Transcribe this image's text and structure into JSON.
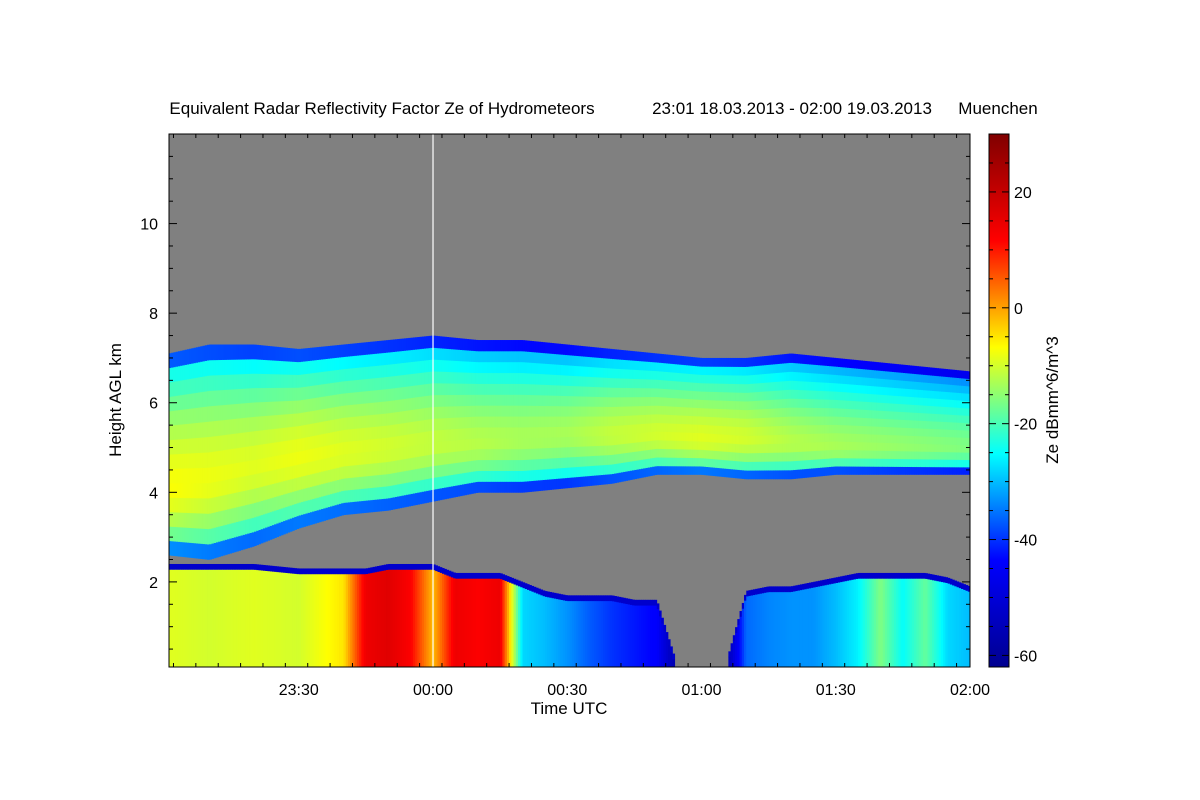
{
  "chart_data": {
    "type": "heatmap",
    "title": "Equivalent Radar Reflectivity Factor Ze of Hydrometeors",
    "period": "23:01 18.03.2013 - 02:00 19.03.2013",
    "location": "Muenchen",
    "xlabel": "Time UTC",
    "ylabel": "Height AGL km",
    "colorbar_label": "Ze dBmm^6/m^3",
    "x_range_minutes": [
      -59,
      120
    ],
    "y_range_km": [
      0.1,
      12.0
    ],
    "z_range_dbz": [
      -62,
      30
    ],
    "x_ticks": [
      {
        "label": "23:30",
        "minutes": -30
      },
      {
        "label": "00:00",
        "minutes": 0
      },
      {
        "label": "00:30",
        "minutes": 30
      },
      {
        "label": "01:00",
        "minutes": 60
      },
      {
        "label": "01:30",
        "minutes": 90
      },
      {
        "label": "02:00",
        "minutes": 120
      }
    ],
    "y_ticks": [
      {
        "label": "2",
        "km": 2
      },
      {
        "label": "4",
        "km": 4
      },
      {
        "label": "6",
        "km": 6
      },
      {
        "label": "8",
        "km": 8
      },
      {
        "label": "10",
        "km": 10
      }
    ],
    "colorbar_ticks": [
      {
        "label": "20",
        "dbz": 20
      },
      {
        "label": "0",
        "dbz": 0
      },
      {
        "label": "-20",
        "dbz": -20
      },
      {
        "label": "-40",
        "dbz": -40
      },
      {
        "label": "-60",
        "dbz": -60
      }
    ],
    "colormap": [
      "#00008f",
      "#0000ff",
      "#00ffff",
      "#ffff00",
      "#ff0000",
      "#800000"
    ],
    "no_data_color": "#808080",
    "marker_line_minutes": 0,
    "upper_layer": {
      "minutes": [
        -59,
        -50,
        -40,
        -30,
        -20,
        -10,
        0,
        10,
        20,
        30,
        40,
        50,
        60,
        70,
        80,
        90,
        100,
        110,
        120
      ],
      "top_km": [
        7.1,
        7.3,
        7.3,
        7.2,
        7.3,
        7.4,
        7.5,
        7.4,
        7.4,
        7.3,
        7.2,
        7.1,
        7.0,
        7.0,
        7.1,
        7.0,
        6.9,
        6.8,
        6.7
      ],
      "base_km": [
        2.6,
        2.5,
        2.8,
        3.2,
        3.5,
        3.6,
        3.8,
        4.0,
        4.0,
        4.1,
        4.2,
        4.4,
        4.4,
        4.3,
        4.3,
        4.4,
        4.4,
        4.4,
        4.4
      ],
      "core_km": [
        4.1,
        4.3,
        4.6,
        4.8,
        4.9,
        5.0,
        5.1,
        5.1,
        5.2,
        5.3,
        5.3,
        5.3,
        5.2,
        5.2,
        5.1,
        5.0,
        5.0,
        5.0,
        5.0
      ],
      "core_dbz": [
        -7,
        -8,
        -9,
        -8,
        -9,
        -10,
        -11,
        -12,
        -13,
        -13,
        -11,
        -10,
        -9,
        -10,
        -12,
        -13,
        -14,
        -15,
        -16
      ]
    },
    "lower_layer": {
      "minutes": [
        -59,
        -50,
        -40,
        -30,
        -20,
        -15,
        -10,
        -5,
        0,
        5,
        10,
        15,
        20,
        25,
        30,
        35,
        40,
        45,
        50,
        55,
        60,
        65,
        70,
        75,
        80,
        85,
        90,
        95,
        100,
        105,
        110,
        115,
        120
      ],
      "top_km": [
        2.4,
        2.4,
        2.4,
        2.3,
        2.3,
        2.3,
        2.4,
        2.4,
        2.4,
        2.2,
        2.2,
        2.2,
        2.0,
        1.8,
        1.7,
        1.7,
        1.7,
        1.6,
        1.6,
        0,
        0,
        0,
        1.8,
        1.9,
        1.9,
        2.0,
        2.1,
        2.2,
        2.2,
        2.2,
        2.2,
        2.1,
        1.9
      ],
      "dbz": [
        -9,
        -10,
        -9,
        -10,
        -5,
        14,
        16,
        12,
        -2,
        14,
        12,
        14,
        -28,
        -30,
        -33,
        -37,
        -40,
        -42,
        -44,
        -60,
        -60,
        -60,
        -36,
        -34,
        -33,
        -33,
        -30,
        -26,
        -16,
        -25,
        -18,
        -28,
        -30
      ]
    }
  }
}
